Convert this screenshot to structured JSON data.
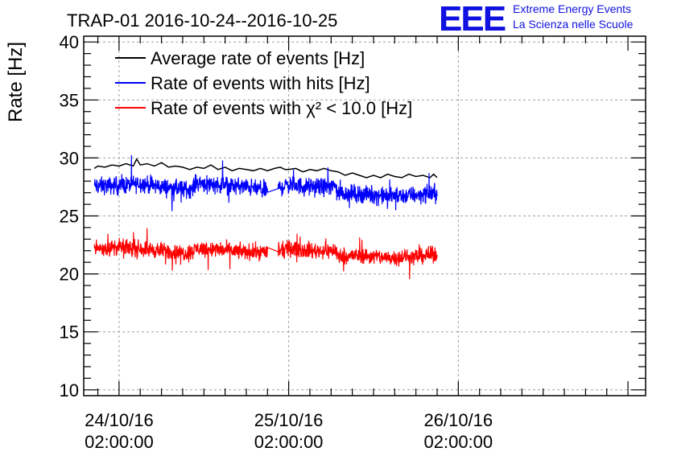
{
  "title": "TRAP-01 2016-10-24--2016-10-25",
  "logo": {
    "letters": "EEE",
    "line1": "Extreme Energy Events",
    "line2": "La Scienza nelle Scuole",
    "color": "#1010e0"
  },
  "chart_data": {
    "type": "line",
    "title": "TRAP-01 2016-10-24--2016-10-25",
    "xlabel": "",
    "ylabel": "Rate [Hz]",
    "ylim": [
      9.5,
      40.5
    ],
    "yticks": [
      10,
      15,
      20,
      25,
      30,
      35,
      40
    ],
    "xlim_hours": [
      -5,
      74.5
    ],
    "xticks": [
      {
        "hours": 0,
        "date": "24/10/16",
        "time": "02:00:00"
      },
      {
        "hours": 24,
        "date": "25/10/16",
        "time": "02:00:00"
      },
      {
        "hours": 48,
        "date": "26/10/16",
        "time": "02:00:00"
      }
    ],
    "grid": true,
    "legend_position": "top-left",
    "series": [
      {
        "name": "Average rate of events [Hz]",
        "color": "#000000",
        "noise": 0,
        "points": [
          [
            -3.5,
            29.1
          ],
          [
            -3,
            29.3
          ],
          [
            -2,
            29.2
          ],
          [
            -1,
            29.4
          ],
          [
            0,
            29.3
          ],
          [
            1,
            29.5
          ],
          [
            2,
            29.3
          ],
          [
            2.5,
            29.9
          ],
          [
            3,
            29.4
          ],
          [
            4,
            29.5
          ],
          [
            5,
            29.3
          ],
          [
            6,
            29.6
          ],
          [
            7,
            29.2
          ],
          [
            8,
            29.3
          ],
          [
            9,
            29.2
          ],
          [
            10,
            29.0
          ],
          [
            11,
            29.2
          ],
          [
            12,
            29.1
          ],
          [
            13,
            29.4
          ],
          [
            14,
            29.0
          ],
          [
            15,
            29.2
          ],
          [
            16,
            28.9
          ],
          [
            17,
            29.1
          ],
          [
            18,
            29.0
          ],
          [
            19,
            28.9
          ],
          [
            20,
            29.1
          ],
          [
            21,
            28.9
          ],
          [
            22,
            29.1
          ],
          [
            22.8,
            29.2
          ],
          [
            23.5,
            29.0
          ],
          [
            24,
            29.0
          ],
          [
            25,
            29.1
          ],
          [
            26,
            28.8
          ],
          [
            27,
            29.0
          ],
          [
            28,
            28.9
          ],
          [
            29,
            29.1
          ],
          [
            30,
            28.9
          ],
          [
            31,
            28.8
          ],
          [
            32,
            28.5
          ],
          [
            33,
            28.7
          ],
          [
            34,
            28.5
          ],
          [
            35,
            28.3
          ],
          [
            36,
            28.5
          ],
          [
            37,
            28.3
          ],
          [
            38,
            28.6
          ],
          [
            39,
            28.4
          ],
          [
            40,
            28.3
          ],
          [
            41,
            28.6
          ],
          [
            42,
            28.4
          ],
          [
            43,
            28.5
          ],
          [
            44,
            28.3
          ],
          [
            44.5,
            28.6
          ],
          [
            45,
            28.3
          ]
        ]
      },
      {
        "name": "Rate of events with hits [Hz]",
        "color": "#0000ff",
        "noise": 1.1,
        "segments": [
          [
            [
              -3.5,
              27.6
            ],
            [
              0,
              27.6
            ],
            [
              3,
              27.8
            ],
            [
              6,
              27.5
            ],
            [
              9,
              27.3
            ],
            [
              10,
              27.3
            ]
          ],
          [
            [
              10,
              27.2
            ],
            [
              11,
              27.9
            ],
            [
              14,
              27.7
            ],
            [
              18,
              27.5
            ],
            [
              21,
              27.2
            ]
          ],
          [
            [
              22.5,
              27.4
            ],
            [
              24,
              27.7
            ],
            [
              27,
              27.5
            ],
            [
              30,
              27.5
            ],
            [
              30.8,
              27.6
            ]
          ],
          [
            [
              30.8,
              27.0
            ],
            [
              34,
              26.9
            ],
            [
              38,
              26.7
            ],
            [
              42,
              26.8
            ],
            [
              45,
              27.0
            ]
          ]
        ]
      },
      {
        "name": "Rate of events with χ² < 10.0 [Hz]",
        "color": "#ff0000",
        "noise": 1.0,
        "segments": [
          [
            [
              -3.5,
              22.2
            ],
            [
              0,
              22.3
            ],
            [
              3,
              22.2
            ],
            [
              6,
              22.0
            ],
            [
              9,
              21.8
            ],
            [
              10,
              21.8
            ]
          ],
          [
            [
              10,
              21.8
            ],
            [
              11,
              22.2
            ],
            [
              14,
              22.1
            ],
            [
              18,
              21.9
            ],
            [
              21,
              21.9
            ]
          ],
          [
            [
              22.5,
              21.9
            ],
            [
              24,
              22.2
            ],
            [
              27,
              22.0
            ],
            [
              30,
              22.0
            ],
            [
              30.8,
              22.1
            ]
          ],
          [
            [
              30.8,
              21.5
            ],
            [
              34,
              21.6
            ],
            [
              38,
              21.4
            ],
            [
              42,
              21.5
            ],
            [
              45,
              21.7
            ]
          ]
        ]
      }
    ]
  }
}
